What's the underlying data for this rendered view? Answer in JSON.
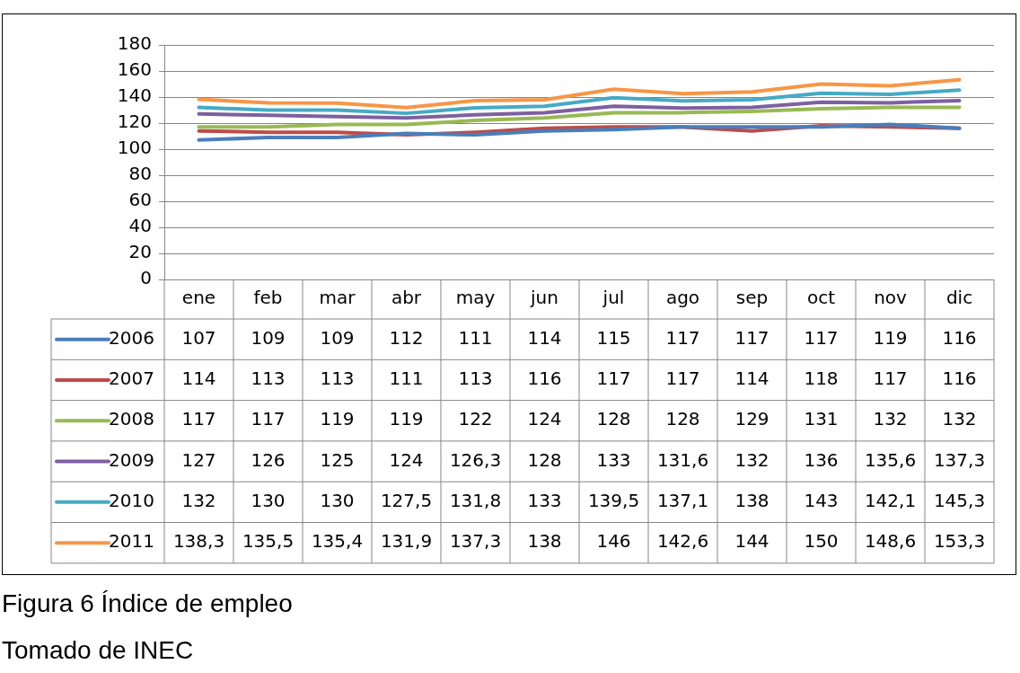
{
  "chart_data": {
    "type": "line",
    "categories": [
      "ene",
      "feb",
      "mar",
      "abr",
      "may",
      "jun",
      "jul",
      "ago",
      "sep",
      "oct",
      "nov",
      "dic"
    ],
    "series": [
      {
        "name": "2006",
        "color": "#4a7ebb",
        "values": [
          107,
          109,
          109,
          112,
          111,
          114,
          115,
          117,
          117,
          117,
          119,
          116
        ],
        "value_labels": [
          "107",
          "109",
          "109",
          "112",
          "111",
          "114",
          "115",
          "117",
          "117",
          "117",
          "119",
          "116"
        ]
      },
      {
        "name": "2007",
        "color": "#be4b48",
        "values": [
          114,
          113,
          113,
          111,
          113,
          116,
          117,
          117,
          114,
          118,
          117,
          116
        ],
        "value_labels": [
          "114",
          "113",
          "113",
          "111",
          "113",
          "116",
          "117",
          "117",
          "114",
          "118",
          "117",
          "116"
        ]
      },
      {
        "name": "2008",
        "color": "#98b954",
        "values": [
          117,
          117,
          119,
          119,
          122,
          124,
          128,
          128,
          129,
          131,
          132,
          132
        ],
        "value_labels": [
          "117",
          "117",
          "119",
          "119",
          "122",
          "124",
          "128",
          "128",
          "129",
          "131",
          "132",
          "132"
        ]
      },
      {
        "name": "2009",
        "color": "#7d60a0",
        "values": [
          127,
          126,
          125,
          124,
          126.3,
          128,
          133,
          131.6,
          132,
          136,
          135.6,
          137.3
        ],
        "value_labels": [
          "127",
          "126",
          "125",
          "124",
          "126,3",
          "128",
          "133",
          "131,6",
          "132",
          "136",
          "135,6",
          "137,3"
        ]
      },
      {
        "name": "2010",
        "color": "#46aac5",
        "values": [
          132,
          130,
          130,
          127.5,
          131.8,
          133,
          139.5,
          137.1,
          138,
          143,
          142.1,
          145.3
        ],
        "value_labels": [
          "132",
          "130",
          "130",
          "127,5",
          "131,8",
          "133",
          "139,5",
          "137,1",
          "138",
          "143",
          "142,1",
          "145,3"
        ]
      },
      {
        "name": "2011",
        "color": "#f79646",
        "values": [
          138.3,
          135.5,
          135.4,
          131.9,
          137.3,
          138,
          146,
          142.6,
          144,
          150,
          148.6,
          153.3
        ],
        "value_labels": [
          "138,3",
          "135,5",
          "135,4",
          "131,9",
          "137,3",
          "138",
          "146",
          "142,6",
          "144",
          "150",
          "148,6",
          "153,3"
        ]
      }
    ],
    "ylim": [
      0,
      180
    ],
    "yticks": [
      0,
      20,
      40,
      60,
      80,
      100,
      120,
      140,
      160,
      180
    ],
    "grid": "y",
    "legend": "bottom",
    "marker": "none",
    "line_style": "solid",
    "annotations": [
      "Figura 6 Índice de empleo",
      "Tomado de INEC"
    ]
  }
}
